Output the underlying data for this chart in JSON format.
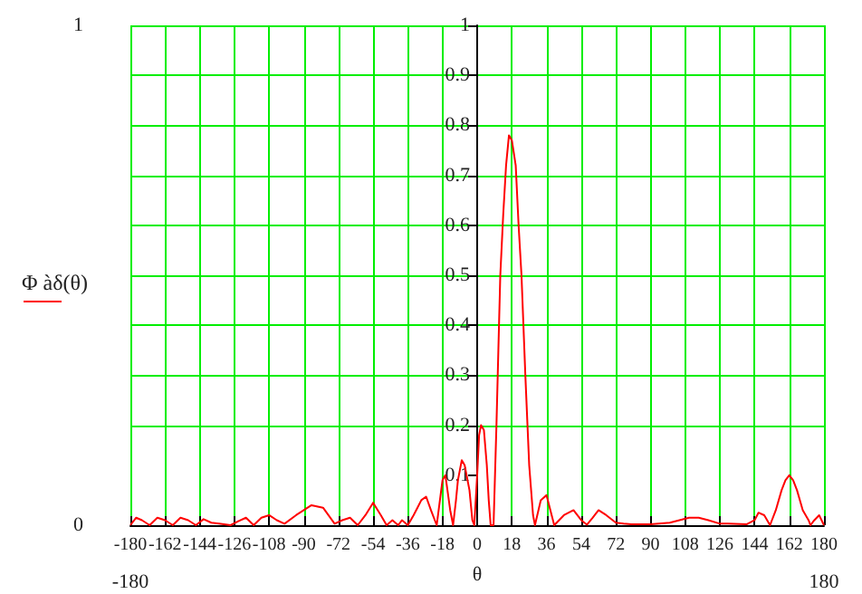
{
  "chart_data": {
    "type": "line",
    "xlabel": "θ",
    "ylabel": "Φ àδ(θ)",
    "x": [
      -180,
      -177,
      -174,
      -170,
      -166,
      -162,
      -158,
      -154,
      -150,
      -146,
      -142,
      -138,
      -134,
      -128,
      -124,
      -120,
      -116,
      -112,
      -108,
      -104,
      -100,
      -94,
      -86,
      -80,
      -74,
      -70,
      -66,
      -62,
      -58,
      -54,
      -50,
      -47,
      -44,
      -41,
      -39,
      -36,
      -33,
      -31,
      -29,
      -26.5,
      -24,
      -21,
      -20,
      -18,
      -16.5,
      -14,
      -12.5,
      -11,
      -10,
      -8,
      -6.5,
      -4,
      -2.5,
      -1.5,
      0,
      1,
      2,
      3.5,
      5,
      6,
      7,
      8.5,
      10,
      11,
      12,
      13.5,
      15,
      16.5,
      18,
      20,
      21.5,
      23,
      25,
      27,
      29,
      30,
      33,
      36,
      40,
      45,
      50,
      54,
      57,
      60,
      63,
      67,
      72,
      76,
      80,
      90,
      100,
      105,
      110,
      115,
      120,
      126,
      130,
      140,
      144,
      146,
      149,
      152,
      155,
      158,
      160,
      162,
      164,
      166,
      169,
      172,
      173,
      175,
      177.5,
      180
    ],
    "series": [
      {
        "color": "#ff0000",
        "values": [
          0,
          0.015,
          0.01,
          0,
          0.015,
          0.01,
          0,
          0.015,
          0.01,
          0,
          0.012,
          0.005,
          0.003,
          0,
          0.008,
          0.015,
          0,
          0.015,
          0.02,
          0.01,
          0.003,
          0.02,
          0.04,
          0.035,
          0.003,
          0.01,
          0.015,
          0,
          0.02,
          0.045,
          0.02,
          0,
          0.01,
          0,
          0.01,
          0,
          0.02,
          0.035,
          0.05,
          0.057,
          0.03,
          0,
          0.03,
          0.09,
          0.1,
          0.03,
          0,
          0.05,
          0.09,
          0.13,
          0.12,
          0.07,
          0.01,
          0,
          0.1,
          0.18,
          0.2,
          0.19,
          0.12,
          0.05,
          0,
          0,
          0.2,
          0.35,
          0.5,
          0.62,
          0.72,
          0.78,
          0.77,
          0.72,
          0.6,
          0.5,
          0.3,
          0.12,
          0.02,
          0,
          0.05,
          0.06,
          0,
          0.02,
          0.03,
          0.01,
          0.001,
          0.015,
          0.03,
          0.02,
          0.005,
          0.003,
          0.002,
          0.002,
          0.005,
          0.01,
          0.015,
          0.015,
          0.01,
          0.003,
          0.003,
          0.002,
          0.01,
          0.025,
          0.02,
          0,
          0.03,
          0.07,
          0.09,
          0.1,
          0.09,
          0.07,
          0.03,
          0.01,
          0,
          0.01,
          0.02,
          0
        ]
      }
    ],
    "xlim": [
      -180,
      180
    ],
    "xticks": [
      -180,
      -162,
      -144,
      -126,
      -108,
      -90,
      -72,
      -54,
      -36,
      -18,
      0,
      18,
      36,
      54,
      72,
      90,
      108,
      126,
      144,
      162,
      180
    ],
    "x2lim": [
      -180,
      180
    ],
    "x2ticks": [
      -180,
      180
    ],
    "ylim": [
      0,
      1
    ],
    "yticks": [
      0,
      1
    ],
    "y2lim": [
      0,
      1
    ],
    "y2ticks": [
      0.1,
      0.2,
      0.3,
      0.4,
      0.5,
      0.6,
      0.7,
      0.8,
      0.9,
      1
    ],
    "grid": true,
    "marker": "none",
    "line_style": "solid"
  }
}
